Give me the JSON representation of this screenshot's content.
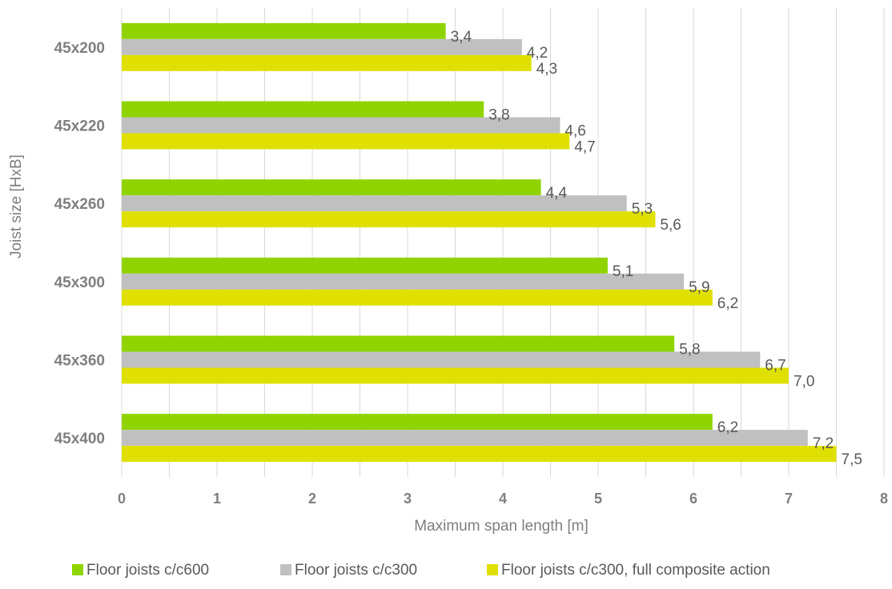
{
  "chart_data": {
    "type": "bar",
    "orientation": "horizontal",
    "categories": [
      "45x200",
      "45x220",
      "45x260",
      "45x300",
      "45x360",
      "45x400"
    ],
    "series": [
      {
        "name": "Floor joists c/c600",
        "color": "#8fd400",
        "values": [
          3.4,
          3.8,
          4.4,
          5.1,
          5.8,
          6.2
        ],
        "labels": [
          "3,4",
          "3,8",
          "4,4",
          "5,1",
          "5,8",
          "6,2"
        ]
      },
      {
        "name": "Floor joists c/c300",
        "color": "#c0c0c0",
        "values": [
          4.2,
          4.6,
          5.3,
          5.9,
          6.7,
          7.2
        ],
        "labels": [
          "4,2",
          "4,6",
          "5,3",
          "5,9",
          "6,7",
          "7,2"
        ]
      },
      {
        "name": "Floor joists c/c300, full composite action",
        "color": "#e0e000",
        "values": [
          4.3,
          4.7,
          5.6,
          6.2,
          7.0,
          7.5
        ],
        "labels": [
          "4,3",
          "4,7",
          "5,6",
          "6,2",
          "7,0",
          "7,5"
        ]
      }
    ],
    "xlabel": "Maximum span length [m]",
    "ylabel": "Joist size [HxB]",
    "xlim": [
      0,
      8
    ],
    "xticks": [
      "0",
      "1",
      "2",
      "3",
      "4",
      "5",
      "6",
      "7",
      "8"
    ],
    "grid": "vertical",
    "legend": "bottom"
  }
}
